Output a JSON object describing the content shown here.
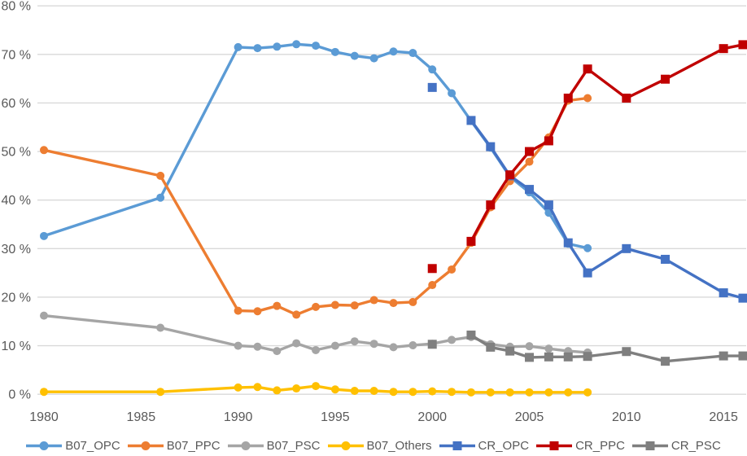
{
  "chart_data": {
    "type": "line",
    "title": "",
    "xlabel": "",
    "ylabel": "",
    "grid": "horizontal",
    "legend_position": "bottom",
    "x_axis": {
      "ticks": [
        1980,
        1985,
        1990,
        1995,
        2000,
        2005,
        2010,
        2015
      ],
      "range": [
        1979.7,
        2016.3
      ]
    },
    "y_axis": {
      "tick_values": [
        80,
        70,
        60,
        50,
        40,
        30,
        20,
        10,
        0
      ],
      "tick_labels": [
        "80 %",
        "70 %",
        "60 %",
        "50 %",
        "40 %",
        "30 %",
        "20 %",
        "10 %",
        "0 %"
      ],
      "min": 0,
      "max": 80,
      "unit": "%"
    },
    "colors": {
      "axis_text": "#595959",
      "gridline": "#D9D9D9"
    },
    "series": [
      {
        "name": "B07_OPC",
        "color": "#5B9BD5",
        "marker": "circle",
        "points": [
          [
            1980,
            32.6
          ],
          [
            1986,
            40.5
          ],
          [
            1990,
            71.5
          ],
          [
            1991,
            71.3
          ],
          [
            1992,
            71.6
          ],
          [
            1993,
            72.1
          ],
          [
            1994,
            71.8
          ],
          [
            1995,
            70.5
          ],
          [
            1996,
            69.7
          ],
          [
            1997,
            69.2
          ],
          [
            1998,
            70.6
          ],
          [
            1999,
            70.3
          ],
          [
            2000,
            66.9
          ],
          [
            2001,
            62.0
          ],
          [
            2002,
            56.3
          ],
          [
            2003,
            50.8
          ],
          [
            2004,
            44.8
          ],
          [
            2005,
            41.6
          ],
          [
            2006,
            37.4
          ],
          [
            2007,
            31.0
          ],
          [
            2008,
            30.1
          ]
        ],
        "lone_points": []
      },
      {
        "name": "B07_PPC",
        "color": "#ED7D31",
        "marker": "circle",
        "points": [
          [
            1980,
            50.3
          ],
          [
            1986,
            45.0
          ],
          [
            1990,
            17.2
          ],
          [
            1991,
            17.1
          ],
          [
            1992,
            18.2
          ],
          [
            1993,
            16.4
          ],
          [
            1994,
            18.0
          ],
          [
            1995,
            18.4
          ],
          [
            1996,
            18.3
          ],
          [
            1997,
            19.4
          ],
          [
            1998,
            18.8
          ],
          [
            1999,
            19.0
          ],
          [
            2000,
            22.5
          ],
          [
            2001,
            25.7
          ],
          [
            2002,
            31.2
          ],
          [
            2003,
            38.5
          ],
          [
            2004,
            43.9
          ],
          [
            2005,
            47.9
          ],
          [
            2006,
            52.9
          ],
          [
            2007,
            60.5
          ],
          [
            2008,
            61.0
          ]
        ],
        "lone_points": []
      },
      {
        "name": "B07_PSC",
        "color": "#A5A5A5",
        "marker": "circle",
        "points": [
          [
            1980,
            16.2
          ],
          [
            1986,
            13.7
          ],
          [
            1990,
            10.0
          ],
          [
            1991,
            9.8
          ],
          [
            1992,
            8.9
          ],
          [
            1993,
            10.5
          ],
          [
            1994,
            9.1
          ],
          [
            1995,
            10.0
          ],
          [
            1996,
            10.9
          ],
          [
            1997,
            10.4
          ],
          [
            1998,
            9.7
          ],
          [
            1999,
            10.1
          ],
          [
            2000,
            10.4
          ],
          [
            2001,
            11.2
          ],
          [
            2002,
            11.8
          ],
          [
            2003,
            10.3
          ],
          [
            2004,
            9.8
          ],
          [
            2005,
            9.9
          ],
          [
            2006,
            9.4
          ],
          [
            2007,
            8.9
          ],
          [
            2008,
            8.6
          ]
        ],
        "lone_points": []
      },
      {
        "name": "B07_Others",
        "color": "#FFC000",
        "marker": "circle",
        "points": [
          [
            1980,
            0.5
          ],
          [
            1986,
            0.5
          ],
          [
            1990,
            1.4
          ],
          [
            1991,
            1.5
          ],
          [
            1992,
            0.8
          ],
          [
            1993,
            1.2
          ],
          [
            1994,
            1.7
          ],
          [
            1995,
            1.0
          ],
          [
            1996,
            0.7
          ],
          [
            1997,
            0.7
          ],
          [
            1998,
            0.5
          ],
          [
            1999,
            0.5
          ],
          [
            2000,
            0.6
          ],
          [
            2001,
            0.5
          ],
          [
            2002,
            0.4
          ],
          [
            2003,
            0.4
          ],
          [
            2004,
            0.4
          ],
          [
            2005,
            0.4
          ],
          [
            2006,
            0.4
          ],
          [
            2007,
            0.4
          ],
          [
            2008,
            0.4
          ]
        ],
        "lone_points": []
      },
      {
        "name": "CR_OPC",
        "color": "#4472C4",
        "marker": "square",
        "points": [
          [
            2002,
            56.4
          ],
          [
            2003,
            51.0
          ],
          [
            2004,
            45.0
          ],
          [
            2005,
            42.2
          ],
          [
            2006,
            39.0
          ],
          [
            2007,
            31.2
          ],
          [
            2008,
            25.0
          ],
          [
            2010,
            30.0
          ],
          [
            2012,
            27.8
          ],
          [
            2015,
            20.9
          ],
          [
            2016,
            19.8
          ]
        ],
        "lone_points": [
          [
            2000,
            63.2
          ]
        ]
      },
      {
        "name": "CR_PPC",
        "color": "#C00000",
        "marker": "square",
        "points": [
          [
            2002,
            31.5
          ],
          [
            2003,
            39.0
          ],
          [
            2004,
            45.2
          ],
          [
            2005,
            50.0
          ],
          [
            2006,
            52.2
          ],
          [
            2007,
            61.0
          ],
          [
            2008,
            67.0
          ],
          [
            2010,
            61.0
          ],
          [
            2012,
            64.9
          ],
          [
            2015,
            71.2
          ],
          [
            2016,
            72.0
          ]
        ],
        "lone_points": [
          [
            2000,
            25.9
          ]
        ]
      },
      {
        "name": "CR_PSC",
        "color": "#7F7F7F",
        "marker": "square",
        "points": [
          [
            2002,
            12.2
          ],
          [
            2003,
            9.7
          ],
          [
            2004,
            8.9
          ],
          [
            2005,
            7.6
          ],
          [
            2006,
            7.7
          ],
          [
            2007,
            7.7
          ],
          [
            2008,
            7.8
          ],
          [
            2010,
            8.8
          ],
          [
            2012,
            6.8
          ],
          [
            2015,
            7.9
          ],
          [
            2016,
            7.9
          ]
        ],
        "lone_points": [
          [
            2000,
            10.3
          ]
        ]
      }
    ],
    "legend_entries": [
      "B07_OPC",
      "B07_PPC",
      "B07_PSC",
      "B07_Others",
      "CR_OPC",
      "CR_PPC",
      "CR_PSC"
    ]
  }
}
